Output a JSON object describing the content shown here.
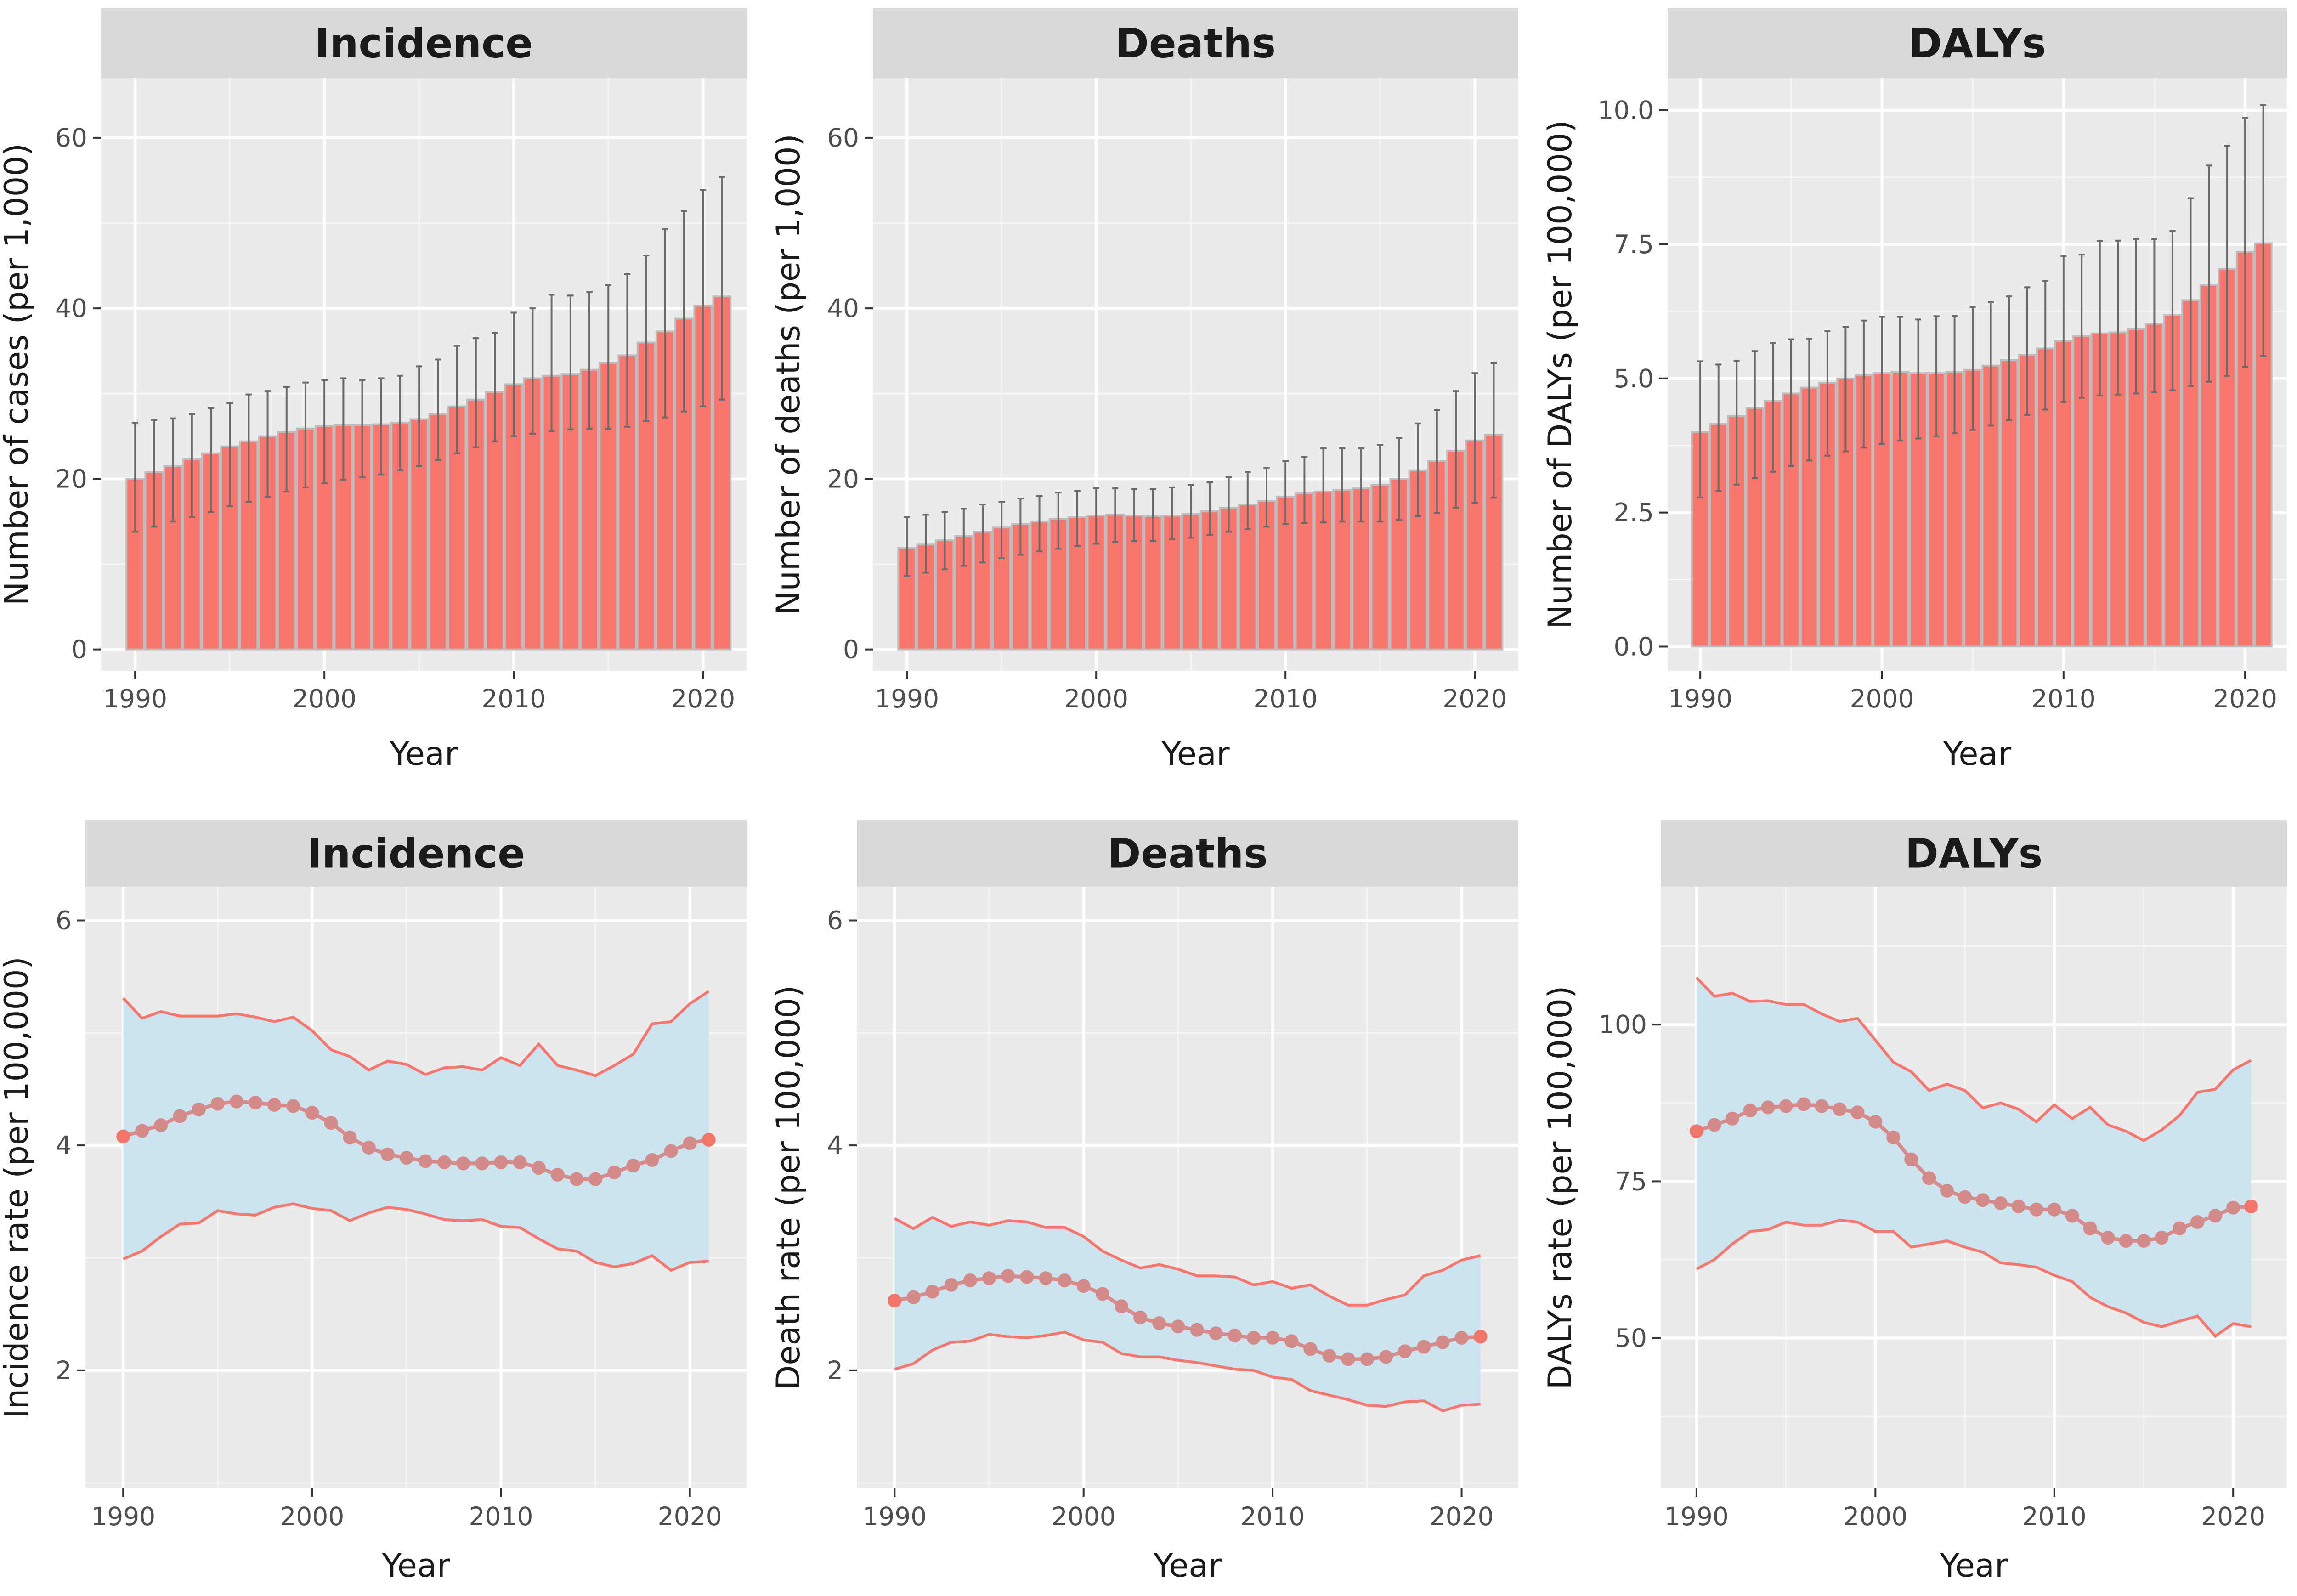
{
  "chart_data": [
    {
      "type": "bar",
      "title": "Incidence",
      "xlabel": "Year",
      "ylabel": "Number of cases (per 1,000)",
      "ylim": [
        -2.5,
        67
      ],
      "xlim": [
        1988.2,
        2022.3
      ],
      "yticks": [
        0,
        20,
        40,
        60
      ],
      "ytick_labels": [
        "0",
        "20",
        "40",
        "60"
      ],
      "xticks": [
        1990,
        2000,
        2010,
        2020
      ],
      "xtick_labels": [
        "1990",
        "2000",
        "2010",
        "2020"
      ],
      "grid": true,
      "bar_color": "#f8766d",
      "errorbar_color": "#6b6b6b",
      "x": [
        1990,
        1991,
        1992,
        1993,
        1994,
        1995,
        1996,
        1997,
        1998,
        1999,
        2000,
        2001,
        2002,
        2003,
        2004,
        2005,
        2006,
        2007,
        2008,
        2009,
        2010,
        2011,
        2012,
        2013,
        2014,
        2015,
        2016,
        2017,
        2018,
        2019,
        2020,
        2021
      ],
      "values": [
        20.0,
        20.8,
        21.5,
        22.3,
        23.0,
        23.8,
        24.4,
        25.0,
        25.5,
        25.9,
        26.2,
        26.3,
        26.3,
        26.4,
        26.6,
        27.0,
        27.6,
        28.5,
        29.3,
        30.2,
        31.1,
        31.8,
        32.1,
        32.3,
        32.8,
        33.6,
        34.5,
        36.0,
        37.3,
        38.8,
        40.3,
        41.4
      ],
      "lower": [
        13.8,
        14.4,
        15.0,
        15.5,
        16.1,
        16.8,
        17.3,
        17.9,
        18.5,
        19.0,
        19.5,
        19.9,
        20.2,
        20.5,
        21.0,
        21.5,
        22.2,
        23.0,
        23.7,
        24.4,
        25.0,
        25.3,
        25.6,
        25.8,
        25.9,
        25.9,
        26.1,
        26.8,
        27.2,
        27.9,
        28.5,
        29.3
      ],
      "upper": [
        26.6,
        26.9,
        27.1,
        27.6,
        28.3,
        28.9,
        29.9,
        30.3,
        30.8,
        31.3,
        31.6,
        31.8,
        31.6,
        31.8,
        32.1,
        33.2,
        34.0,
        35.6,
        36.5,
        37.1,
        39.5,
        40.0,
        41.6,
        41.5,
        41.9,
        42.7,
        44.0,
        46.2,
        49.3,
        51.4,
        53.9,
        55.4
      ]
    },
    {
      "type": "bar",
      "title": "Deaths",
      "xlabel": "Year",
      "ylabel": "Number of deaths (per 1,000)",
      "ylim": [
        -2.5,
        67
      ],
      "xlim": [
        1988.2,
        2022.3
      ],
      "yticks": [
        0,
        20,
        40,
        60
      ],
      "ytick_labels": [
        "0",
        "20",
        "40",
        "60"
      ],
      "xticks": [
        1990,
        2000,
        2010,
        2020
      ],
      "xtick_labels": [
        "1990",
        "2000",
        "2010",
        "2020"
      ],
      "grid": true,
      "bar_color": "#f8766d",
      "errorbar_color": "#6b6b6b",
      "x": [
        1990,
        1991,
        1992,
        1993,
        1994,
        1995,
        1996,
        1997,
        1998,
        1999,
        2000,
        2001,
        2002,
        2003,
        2004,
        2005,
        2006,
        2007,
        2008,
        2009,
        2010,
        2011,
        2012,
        2013,
        2014,
        2015,
        2016,
        2017,
        2018,
        2019,
        2020,
        2021
      ],
      "values": [
        11.9,
        12.3,
        12.8,
        13.3,
        13.8,
        14.3,
        14.7,
        15.0,
        15.3,
        15.5,
        15.7,
        15.8,
        15.7,
        15.6,
        15.7,
        15.9,
        16.2,
        16.6,
        17.0,
        17.4,
        17.9,
        18.3,
        18.5,
        18.7,
        18.9,
        19.3,
        20.0,
        21.0,
        22.1,
        23.3,
        24.5,
        25.2
      ],
      "lower": [
        8.6,
        9.0,
        9.4,
        9.8,
        10.2,
        10.7,
        11.1,
        11.5,
        11.8,
        12.1,
        12.4,
        12.6,
        12.7,
        12.7,
        12.9,
        13.1,
        13.4,
        13.8,
        14.1,
        14.4,
        14.7,
        14.8,
        14.9,
        15.0,
        15.0,
        15.0,
        15.2,
        15.6,
        16.0,
        16.6,
        17.2,
        17.8
      ],
      "upper": [
        15.5,
        15.8,
        16.1,
        16.5,
        17.0,
        17.3,
        17.7,
        18.0,
        18.4,
        18.6,
        18.9,
        18.9,
        18.8,
        18.8,
        19.0,
        19.3,
        19.6,
        20.2,
        20.8,
        21.3,
        22.1,
        22.6,
        23.6,
        23.6,
        23.6,
        24.0,
        24.8,
        26.5,
        28.1,
        30.3,
        32.4,
        33.6
      ]
    },
    {
      "type": "bar",
      "title": "DALYs",
      "xlabel": "Year",
      "ylabel": "Number of DALYs (per 100,000)",
      "ylim": [
        -0.45,
        10.6
      ],
      "xlim": [
        1988.2,
        2022.3
      ],
      "yticks": [
        0,
        2.5,
        5,
        7.5,
        10
      ],
      "ytick_labels": [
        "0.0",
        "2.5",
        "5.0",
        "7.5",
        "10.0"
      ],
      "xticks": [
        1990,
        2000,
        2010,
        2020
      ],
      "xtick_labels": [
        "1990",
        "2000",
        "2010",
        "2020"
      ],
      "grid": true,
      "bar_color": "#f8766d",
      "errorbar_color": "#6b6b6b",
      "x": [
        1990,
        1991,
        1992,
        1993,
        1994,
        1995,
        1996,
        1997,
        1998,
        1999,
        2000,
        2001,
        2002,
        2003,
        2004,
        2005,
        2006,
        2007,
        2008,
        2009,
        2010,
        2011,
        2012,
        2013,
        2014,
        2015,
        2016,
        2017,
        2018,
        2019,
        2020,
        2021
      ],
      "values": [
        4.0,
        4.15,
        4.3,
        4.45,
        4.58,
        4.72,
        4.83,
        4.92,
        5.0,
        5.06,
        5.1,
        5.12,
        5.1,
        5.1,
        5.12,
        5.16,
        5.24,
        5.34,
        5.44,
        5.56,
        5.7,
        5.79,
        5.84,
        5.86,
        5.92,
        6.02,
        6.18,
        6.46,
        6.74,
        7.04,
        7.36,
        7.52
      ],
      "lower": [
        2.78,
        2.9,
        3.02,
        3.14,
        3.26,
        3.37,
        3.47,
        3.56,
        3.64,
        3.71,
        3.78,
        3.84,
        3.88,
        3.92,
        3.98,
        4.04,
        4.12,
        4.22,
        4.32,
        4.42,
        4.56,
        4.64,
        4.68,
        4.7,
        4.72,
        4.74,
        4.78,
        4.86,
        4.94,
        5.05,
        5.22,
        5.42
      ],
      "upper": [
        5.32,
        5.26,
        5.33,
        5.51,
        5.66,
        5.73,
        5.74,
        5.88,
        5.96,
        6.08,
        6.15,
        6.15,
        6.1,
        6.16,
        6.17,
        6.33,
        6.42,
        6.53,
        6.7,
        6.82,
        7.28,
        7.31,
        7.56,
        7.57,
        7.6,
        7.6,
        7.75,
        8.36,
        8.97,
        9.34,
        9.86,
        10.1
      ]
    },
    {
      "type": "line",
      "title": "Incidence",
      "xlabel": "Year",
      "ylabel": "Incidence rate (per 100,000)",
      "ylim": [
        0.95,
        6.3
      ],
      "xlim": [
        1988.0,
        2023.0
      ],
      "yticks": [
        2,
        4,
        6
      ],
      "ytick_labels": [
        "2",
        "4",
        "6"
      ],
      "xticks": [
        1990,
        2000,
        2010,
        2020
      ],
      "xtick_labels": [
        "1990",
        "2000",
        "2010",
        "2020"
      ],
      "grid": true,
      "line_color": "#f8766d",
      "band_color": "#cbe4ef",
      "x": [
        1990,
        1991,
        1992,
        1993,
        1994,
        1995,
        1996,
        1997,
        1998,
        1999,
        2000,
        2001,
        2002,
        2003,
        2004,
        2005,
        2006,
        2007,
        2008,
        2009,
        2010,
        2011,
        2012,
        2013,
        2014,
        2015,
        2016,
        2017,
        2018,
        2019,
        2020,
        2021
      ],
      "values": [
        4.08,
        4.13,
        4.18,
        4.26,
        4.32,
        4.37,
        4.39,
        4.38,
        4.36,
        4.35,
        4.29,
        4.2,
        4.07,
        3.98,
        3.92,
        3.89,
        3.86,
        3.85,
        3.84,
        3.84,
        3.85,
        3.85,
        3.8,
        3.74,
        3.7,
        3.7,
        3.76,
        3.82,
        3.87,
        3.95,
        4.02,
        4.05
      ],
      "lower": [
        2.99,
        3.06,
        3.19,
        3.3,
        3.31,
        3.42,
        3.39,
        3.38,
        3.45,
        3.48,
        3.44,
        3.42,
        3.33,
        3.4,
        3.45,
        3.43,
        3.39,
        3.34,
        3.33,
        3.34,
        3.28,
        3.27,
        3.17,
        3.08,
        3.06,
        2.96,
        2.92,
        2.95,
        3.02,
        2.89,
        2.96,
        2.97
      ],
      "upper": [
        5.31,
        5.13,
        5.19,
        5.15,
        5.15,
        5.15,
        5.17,
        5.14,
        5.1,
        5.14,
        5.02,
        4.85,
        4.79,
        4.67,
        4.75,
        4.72,
        4.63,
        4.69,
        4.7,
        4.67,
        4.78,
        4.71,
        4.9,
        4.71,
        4.67,
        4.62,
        4.71,
        4.81,
        5.08,
        5.1,
        5.26,
        5.37
      ]
    },
    {
      "type": "line",
      "title": "Deaths",
      "xlabel": "Year",
      "ylabel": "Death rate (per 100,000)",
      "ylim": [
        0.95,
        6.3
      ],
      "xlim": [
        1988.0,
        2023.0
      ],
      "yticks": [
        2,
        4,
        6
      ],
      "ytick_labels": [
        "2",
        "4",
        "6"
      ],
      "xticks": [
        1990,
        2000,
        2010,
        2020
      ],
      "xtick_labels": [
        "1990",
        "2000",
        "2010",
        "2020"
      ],
      "grid": true,
      "line_color": "#f8766d",
      "band_color": "#cbe4ef",
      "x": [
        1990,
        1991,
        1992,
        1993,
        1994,
        1995,
        1996,
        1997,
        1998,
        1999,
        2000,
        2001,
        2002,
        2003,
        2004,
        2005,
        2006,
        2007,
        2008,
        2009,
        2010,
        2011,
        2012,
        2013,
        2014,
        2015,
        2016,
        2017,
        2018,
        2019,
        2020,
        2021
      ],
      "values": [
        2.62,
        2.65,
        2.7,
        2.76,
        2.8,
        2.82,
        2.84,
        2.83,
        2.82,
        2.8,
        2.75,
        2.68,
        2.57,
        2.47,
        2.42,
        2.39,
        2.36,
        2.33,
        2.31,
        2.29,
        2.29,
        2.26,
        2.19,
        2.13,
        2.1,
        2.1,
        2.12,
        2.17,
        2.21,
        2.25,
        2.29,
        2.3
      ],
      "lower": [
        2.01,
        2.06,
        2.18,
        2.25,
        2.26,
        2.32,
        2.3,
        2.29,
        2.31,
        2.34,
        2.27,
        2.25,
        2.15,
        2.12,
        2.12,
        2.09,
        2.07,
        2.04,
        2.01,
        2.0,
        1.94,
        1.92,
        1.82,
        1.78,
        1.74,
        1.69,
        1.68,
        1.72,
        1.73,
        1.64,
        1.69,
        1.7
      ],
      "upper": [
        3.35,
        3.26,
        3.36,
        3.28,
        3.32,
        3.29,
        3.33,
        3.32,
        3.27,
        3.27,
        3.19,
        3.06,
        2.98,
        2.91,
        2.94,
        2.9,
        2.84,
        2.84,
        2.83,
        2.76,
        2.79,
        2.73,
        2.76,
        2.66,
        2.58,
        2.58,
        2.63,
        2.67,
        2.84,
        2.89,
        2.98,
        3.02
      ]
    },
    {
      "type": "line",
      "title": "DALYs",
      "xlabel": "Year",
      "ylabel": "DALYs rate (per 100,000)",
      "ylim": [
        26,
        122
      ],
      "xlim": [
        1988.0,
        2023.0
      ],
      "yticks": [
        50,
        75,
        100
      ],
      "ytick_labels": [
        "50",
        "75",
        "100"
      ],
      "xticks": [
        1990,
        2000,
        2010,
        2020
      ],
      "xtick_labels": [
        "1990",
        "2000",
        "2010",
        "2020"
      ],
      "grid": true,
      "line_color": "#f8766d",
      "band_color": "#cbe4ef",
      "x": [
        1990,
        1991,
        1992,
        1993,
        1994,
        1995,
        1996,
        1997,
        1998,
        1999,
        2000,
        2001,
        2002,
        2003,
        2004,
        2005,
        2006,
        2007,
        2008,
        2009,
        2010,
        2011,
        2012,
        2013,
        2014,
        2015,
        2016,
        2017,
        2018,
        2019,
        2020,
        2021
      ],
      "values": [
        83.0,
        84.0,
        85.0,
        86.3,
        86.8,
        87.0,
        87.3,
        87.0,
        86.5,
        86.0,
        84.5,
        82.0,
        78.5,
        75.5,
        73.5,
        72.5,
        72.0,
        71.5,
        71.0,
        70.5,
        70.5,
        69.5,
        67.5,
        66.0,
        65.5,
        65.5,
        66.0,
        67.5,
        68.5,
        69.5,
        70.8,
        71.0
      ],
      "lower": [
        61.0,
        62.5,
        65.0,
        67.0,
        67.3,
        68.5,
        68.0,
        68.0,
        68.8,
        68.5,
        67.0,
        67.0,
        64.5,
        65.0,
        65.5,
        64.5,
        63.7,
        62.0,
        61.7,
        61.3,
        60.0,
        59.0,
        56.5,
        55.0,
        54.0,
        52.5,
        51.8,
        52.7,
        53.5,
        50.3,
        52.3,
        51.8
      ],
      "upper": [
        107.5,
        104.5,
        105.0,
        103.7,
        103.8,
        103.2,
        103.2,
        101.7,
        100.5,
        101.0,
        97.5,
        94.0,
        92.5,
        89.5,
        90.5,
        89.5,
        86.7,
        87.5,
        86.5,
        84.5,
        87.2,
        85.0,
        86.8,
        84.0,
        83.0,
        81.5,
        83.2,
        85.5,
        89.2,
        89.7,
        92.8,
        94.3
      ]
    }
  ]
}
